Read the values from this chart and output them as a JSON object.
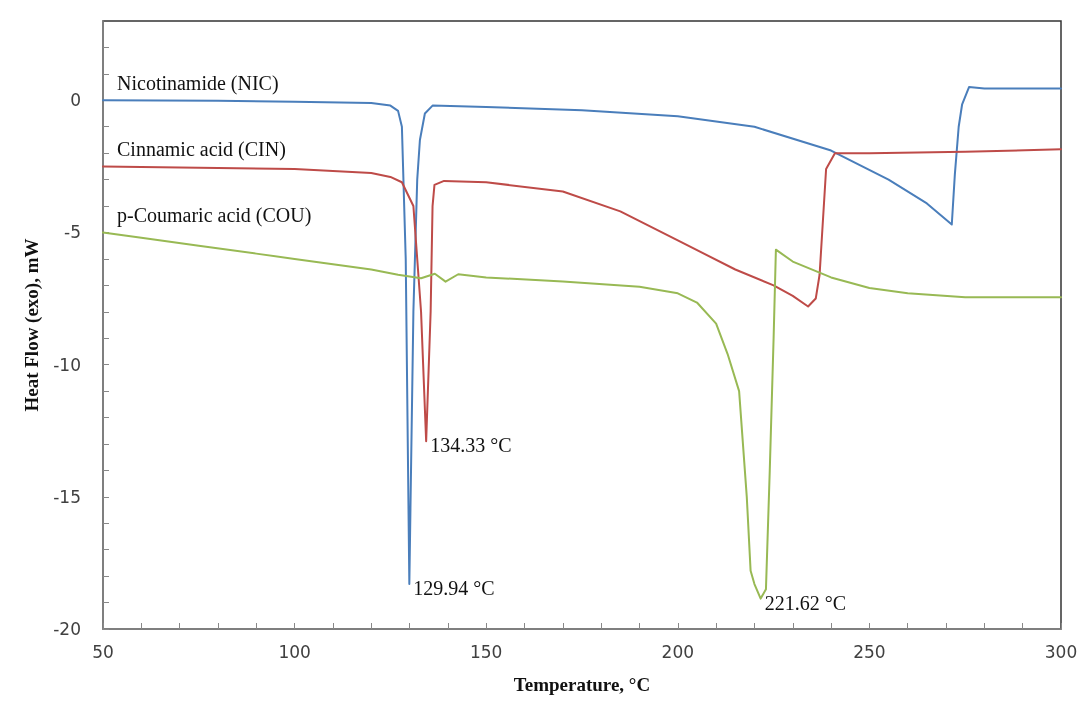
{
  "chart_data": {
    "type": "line",
    "xlabel": "Temperature, °C",
    "ylabel": "Heat Flow (exo), mW",
    "xlim": [
      50,
      300
    ],
    "ylim": [
      -20,
      3
    ],
    "xticks": [
      50,
      {
        "value": 60,
        "label": null
      },
      {
        "value": 70,
        "label": null
      },
      {
        "value": 80,
        "label": null
      },
      {
        "value": 90,
        "label": null
      },
      100,
      {
        "value": 110,
        "label": null
      },
      {
        "value": 120,
        "label": null
      },
      {
        "value": 130,
        "label": null
      },
      {
        "value": 140,
        "label": null
      },
      150,
      {
        "value": 160,
        "label": null
      },
      {
        "value": 170,
        "label": null
      },
      {
        "value": 180,
        "label": null
      },
      {
        "value": 190,
        "label": null
      },
      200,
      {
        "value": 210,
        "label": null
      },
      {
        "value": 220,
        "label": null
      },
      {
        "value": 230,
        "label": null
      },
      {
        "value": 240,
        "label": null
      },
      250,
      {
        "value": 260,
        "label": null
      },
      {
        "value": 270,
        "label": null
      },
      {
        "value": 280,
        "label": null
      },
      {
        "value": 290,
        "label": null
      },
      300
    ],
    "yticks": [
      -20,
      {
        "value": -19,
        "label": null
      },
      {
        "value": -18,
        "label": null
      },
      {
        "value": -17,
        "label": null
      },
      {
        "value": -16,
        "label": null
      },
      -15,
      {
        "value": -14,
        "label": null
      },
      {
        "value": -13,
        "label": null
      },
      {
        "value": -12,
        "label": null
      },
      {
        "value": -11,
        "label": null
      },
      -10,
      {
        "value": -9,
        "label": null
      },
      {
        "value": -8,
        "label": null
      },
      {
        "value": -7,
        "label": null
      },
      {
        "value": -6,
        "label": null
      },
      -5,
      {
        "value": -4,
        "label": null
      },
      {
        "value": -3,
        "label": null
      },
      {
        "value": -2,
        "label": null
      },
      {
        "value": -1,
        "label": null
      },
      0,
      {
        "value": 1,
        "label": null
      },
      {
        "value": 2,
        "label": null
      }
    ],
    "grid": false,
    "marker": "none",
    "line_style": "solid",
    "series": [
      {
        "name": "Nicotinamide (NIC)",
        "color": "#4a7ebb",
        "x": [
          50,
          80,
          100,
          120,
          125,
          127,
          128,
          129,
          129.94,
          131,
          132,
          132.7,
          134,
          136,
          150,
          175,
          200,
          220,
          240,
          255,
          265,
          271.5,
          272.3,
          273.3,
          274.2,
          276,
          280,
          300
        ],
        "values": [
          0,
          -0.02,
          -0.05,
          -0.1,
          -0.2,
          -0.4,
          -1,
          -6,
          -18.3,
          -8,
          -3,
          -1.5,
          -0.5,
          -0.2,
          -0.25,
          -0.38,
          -0.6,
          -1,
          -1.9,
          -3,
          -3.9,
          -4.7,
          -2.8,
          -1,
          -0.15,
          0.5,
          0.45,
          0.45
        ]
      },
      {
        "name": "Cinnamic acid (CIN)",
        "color": "#be4b48",
        "x": [
          50,
          100,
          120,
          125,
          128,
          131,
          133,
          134.33,
          135.5,
          136,
          136.5,
          139,
          150,
          170,
          185,
          200,
          215,
          225,
          230,
          234,
          236,
          237,
          238.7,
          241,
          250,
          275,
          300
        ],
        "values": [
          -2.5,
          -2.6,
          -2.75,
          -2.9,
          -3.1,
          -4,
          -8,
          -12.9,
          -8,
          -4,
          -3.2,
          -3.05,
          -3.1,
          -3.45,
          -4.2,
          -5.3,
          -6.4,
          -7,
          -7.4,
          -7.8,
          -7.5,
          -6.6,
          -2.6,
          -2,
          -2,
          -1.95,
          -1.85
        ]
      },
      {
        "name": "p-Coumaric acid (COU)",
        "color": "#98b954",
        "x": [
          50,
          60,
          75,
          90,
          100,
          110,
          120,
          127,
          133,
          136.6,
          139.4,
          142.7,
          150,
          170,
          190,
          200,
          205,
          210,
          213,
          216,
          218,
          219,
          220,
          221.62,
          223,
          224,
          225,
          225.6,
          230,
          240,
          250,
          260,
          275,
          300
        ],
        "values": [
          -5,
          -5.2,
          -5.5,
          -5.8,
          -6,
          -6.2,
          -6.4,
          -6.6,
          -6.73,
          -6.56,
          -6.86,
          -6.58,
          -6.7,
          -6.85,
          -7.05,
          -7.3,
          -7.65,
          -8.45,
          -9.6,
          -11,
          -15,
          -17.8,
          -18.3,
          -18.85,
          -18.5,
          -14,
          -9,
          -5.65,
          -6.1,
          -6.7,
          -7.1,
          -7.3,
          -7.45,
          -7.45
        ]
      }
    ],
    "annotations": [
      {
        "text": "129.94 °C",
        "x": 129.94,
        "y": -18.3
      },
      {
        "text": "134.33 °C",
        "x": 134.33,
        "y": -12.9
      },
      {
        "text": "221.62 °C",
        "x": 221.62,
        "y": -18.85
      }
    ]
  }
}
